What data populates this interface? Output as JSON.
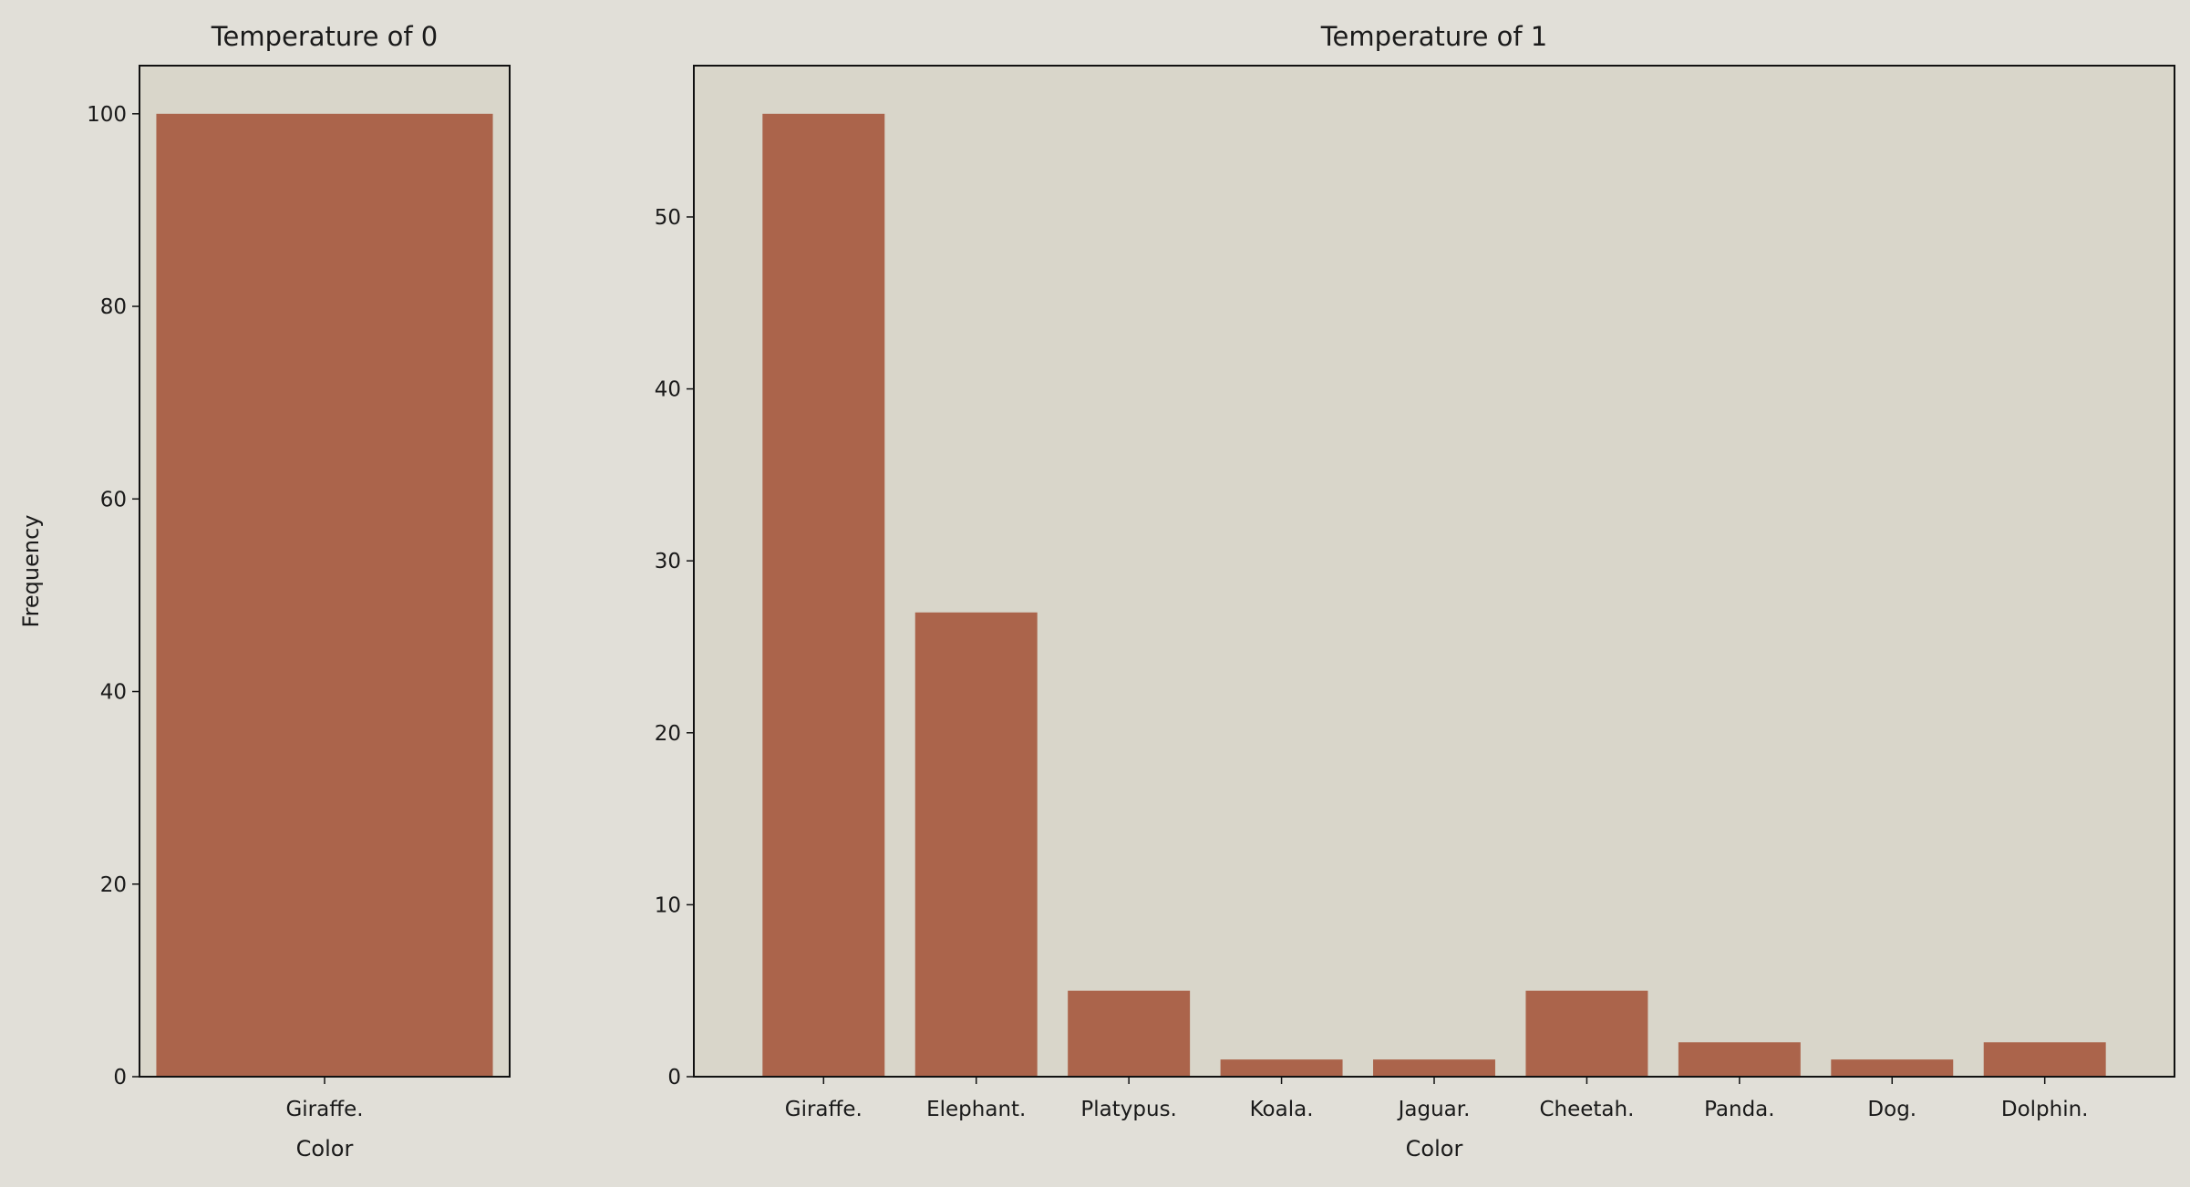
{
  "chart_data": [
    {
      "type": "bar",
      "title": "Temperature of 0",
      "xlabel": "Color",
      "ylabel": "Frequency",
      "categories": [
        "Giraffe."
      ],
      "values": [
        100
      ],
      "ylim": [
        0,
        105
      ],
      "yticks": [
        0,
        20,
        40,
        60,
        80,
        100
      ],
      "grid": false,
      "bar_color": "#ab644b",
      "axes_bg": "#d9d6ca"
    },
    {
      "type": "bar",
      "title": "Temperature of 1",
      "xlabel": "Color",
      "ylabel": "",
      "categories": [
        "Giraffe.",
        "Elephant.",
        "Platypus.",
        "Koala.",
        "Jaguar.",
        "Cheetah.",
        "Panda.",
        "Dog.",
        "Dolphin."
      ],
      "values": [
        56,
        27,
        5,
        1,
        1,
        5,
        2,
        1,
        2
      ],
      "ylim": [
        0,
        58.8
      ],
      "yticks": [
        0,
        10,
        20,
        30,
        40,
        50
      ],
      "grid": false,
      "bar_color": "#ab644b",
      "axes_bg": "#d9d6ca"
    }
  ],
  "figure_bg": "#e1dfd8"
}
